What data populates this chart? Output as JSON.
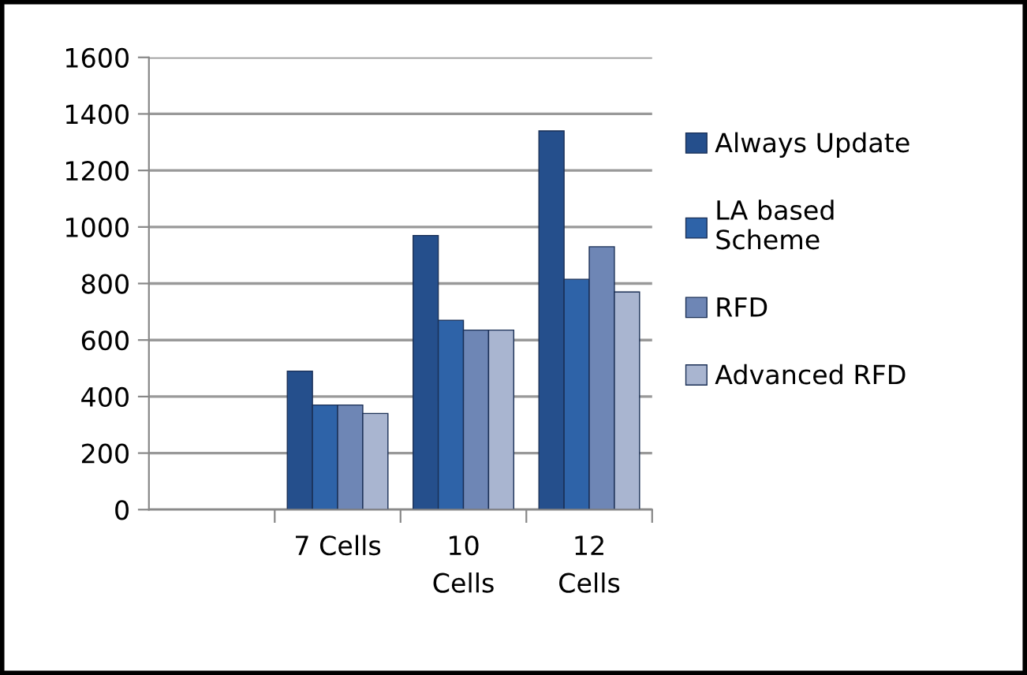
{
  "chart_data": {
    "type": "bar",
    "categories": [
      null,
      "7 Cells",
      "10 Cells",
      "12 Cells"
    ],
    "series": [
      {
        "name": "Always Update",
        "color": "#254f8c",
        "values": [
          null,
          490,
          970,
          1340
        ]
      },
      {
        "name": "LA based Scheme",
        "color": "#2e63a8",
        "values": [
          null,
          370,
          670,
          815
        ]
      },
      {
        "name": "RFD",
        "color": "#6e86b5",
        "values": [
          null,
          370,
          635,
          930
        ]
      },
      {
        "name": "Advanced RFD",
        "color": "#a9b5d0",
        "values": [
          null,
          340,
          635,
          770
        ]
      }
    ],
    "ylim": [
      0,
      1600
    ],
    "yticks": [
      0,
      200,
      400,
      600,
      800,
      1000,
      1200,
      1400,
      1600
    ],
    "grid": "y",
    "legend": "right"
  }
}
